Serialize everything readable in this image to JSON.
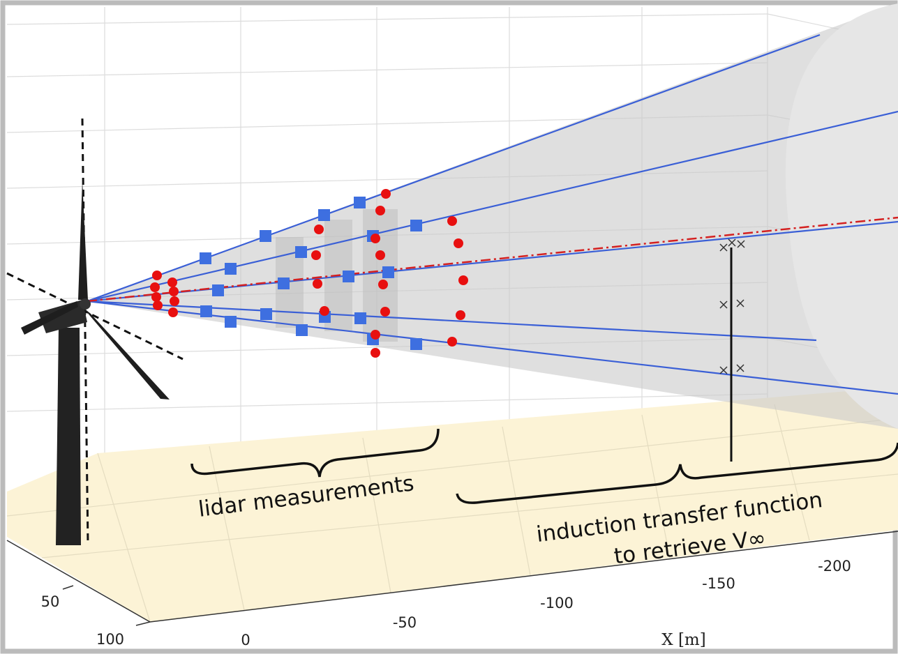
{
  "annotations": {
    "lidar": "lidar measurements",
    "induction_line1": "induction transfer function",
    "induction_line2": "to retrieve V∞"
  },
  "axes": {
    "x_label": "X [m]",
    "x_ticks": [
      "0",
      "-50",
      "-100",
      "-150",
      "-200"
    ],
    "y_ticks": [
      "50",
      "100"
    ]
  }
}
